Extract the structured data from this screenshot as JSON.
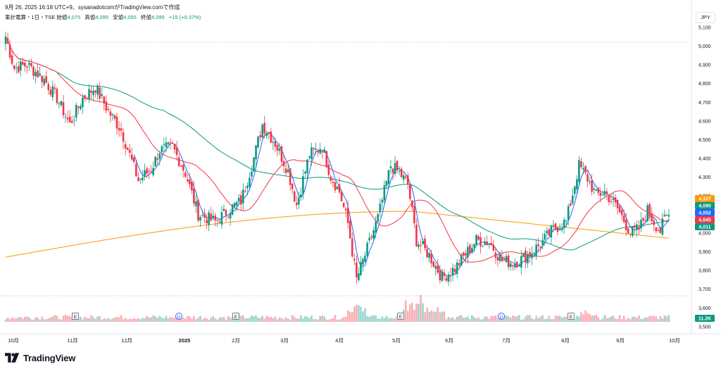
{
  "header": {
    "caption": "9月 26, 2025 16:18 UTC+9、sysanadotcomがTradingView.comで作成",
    "symbol": "東計電算・1日・TSE",
    "open_label": "始値",
    "open": "4,075",
    "high_label": "高値",
    "high": "4,095",
    "low_label": "安値",
    "low": "4,055",
    "close_label": "終値",
    "close": "4,095",
    "change": "+15 (+0.37%)",
    "currency": "JPY"
  },
  "footer": {
    "brand": "TradingView"
  },
  "colors": {
    "up": "#089981",
    "down": "#f23645",
    "ma_short": "#2962ff",
    "ma_mid": "#f23645",
    "ma_long": "#089981",
    "ma_vlong": "#ff9800",
    "axis_text": "#131722",
    "event_marker": "#787b86",
    "dividend_marker": "#2962ff"
  },
  "chart_data": {
    "type": "candlestick",
    "ylim": [
      3520,
      5170
    ],
    "y_ticks": [
      "3,500",
      "3,600",
      "3,700",
      "3,800",
      "3,900",
      "4,000",
      "4,100",
      "4,200",
      "4,300",
      "4,400",
      "4,500",
      "4,600",
      "4,700",
      "4,800",
      "4,900",
      "5,000",
      "5,100"
    ],
    "x_labels": [
      "10月",
      "11月",
      "12月",
      "2025",
      "2月",
      "3月",
      "4月",
      "5月",
      "6月",
      "7月",
      "8月",
      "9月",
      "10月"
    ],
    "price_badges": [
      {
        "value": "4,107",
        "color": "#ff9800"
      },
      {
        "value": "4,095",
        "color": "#089981"
      },
      {
        "value": "4,052",
        "color": "#2962ff"
      },
      {
        "value": "4,045",
        "color": "#f23645"
      },
      {
        "value": "4,011",
        "color": "#089981"
      }
    ],
    "volume_badge": "11.2K",
    "event_markers": [
      {
        "label": "E",
        "month": "11月"
      },
      {
        "label": "D",
        "month": "2025"
      },
      {
        "label": "E",
        "month": "2月"
      },
      {
        "label": "E",
        "month": "5月"
      },
      {
        "label": "D",
        "month": "7月"
      },
      {
        "label": "E",
        "month": "8月"
      }
    ],
    "price_keypoints": [
      [
        0,
        5050
      ],
      [
        4,
        4880
      ],
      [
        10,
        4900
      ],
      [
        18,
        4820
      ],
      [
        24,
        4720
      ],
      [
        30,
        4580
      ],
      [
        36,
        4720
      ],
      [
        42,
        4780
      ],
      [
        48,
        4650
      ],
      [
        54,
        4550
      ],
      [
        62,
        4280
      ],
      [
        68,
        4340
      ],
      [
        72,
        4440
      ],
      [
        78,
        4460
      ],
      [
        84,
        4320
      ],
      [
        90,
        4100
      ],
      [
        98,
        4060
      ],
      [
        104,
        4120
      ],
      [
        110,
        4170
      ],
      [
        116,
        4400
      ],
      [
        120,
        4580
      ],
      [
        126,
        4480
      ],
      [
        132,
        4330
      ],
      [
        136,
        4150
      ],
      [
        142,
        4420
      ],
      [
        148,
        4460
      ],
      [
        152,
        4300
      ],
      [
        156,
        4220
      ],
      [
        160,
        4050
      ],
      [
        164,
        3750
      ],
      [
        168,
        3880
      ],
      [
        174,
        4080
      ],
      [
        180,
        4360
      ],
      [
        184,
        4320
      ],
      [
        188,
        4260
      ],
      [
        192,
        3960
      ],
      [
        198,
        3880
      ],
      [
        204,
        3760
      ],
      [
        210,
        3810
      ],
      [
        216,
        3900
      ],
      [
        220,
        3960
      ],
      [
        226,
        3950
      ],
      [
        232,
        3850
      ],
      [
        238,
        3840
      ],
      [
        244,
        3880
      ],
      [
        250,
        3940
      ],
      [
        256,
        4020
      ],
      [
        262,
        4060
      ],
      [
        268,
        4360
      ],
      [
        272,
        4290
      ],
      [
        276,
        4200
      ],
      [
        280,
        4220
      ],
      [
        286,
        4130
      ],
      [
        292,
        4000
      ],
      [
        296,
        4020
      ],
      [
        300,
        4120
      ],
      [
        304,
        4040
      ],
      [
        306,
        4010
      ],
      [
        308,
        4075
      ],
      [
        310,
        4095
      ]
    ]
  }
}
